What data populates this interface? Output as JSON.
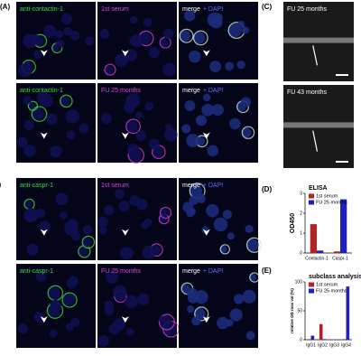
{
  "panel_labels": [
    "(A)",
    "(B)",
    "(C)",
    "(D)",
    "(E)"
  ],
  "images": [
    {
      "panel": 0,
      "labels": [
        {
          "text": "anti-contactin-1",
          "color": "#3fdc3f"
        }
      ]
    },
    {
      "panel": 0,
      "labels": [
        {
          "text": "1st serum",
          "color": "#e040e0"
        }
      ]
    },
    {
      "panel": 0,
      "labels": [
        {
          "text": "merge",
          "color": "#ffffff"
        },
        {
          "text": "+ DAPI",
          "color": "#5a6cff"
        }
      ]
    },
    {
      "panel": 0,
      "labels": [
        {
          "text": "anti-contactin-1",
          "color": "#3fdc3f"
        }
      ]
    },
    {
      "panel": 0,
      "labels": [
        {
          "text": "FU 25 months",
          "color": "#e040e0"
        }
      ]
    },
    {
      "panel": 0,
      "labels": [
        {
          "text": "merge",
          "color": "#ffffff"
        },
        {
          "text": "+ DAPI",
          "color": "#5a6cff"
        }
      ]
    },
    {
      "panel": 1,
      "labels": [
        {
          "text": "anti-caspr-1",
          "color": "#3fdc3f"
        }
      ]
    },
    {
      "panel": 1,
      "labels": [
        {
          "text": "1st serum",
          "color": "#e040e0"
        }
      ]
    },
    {
      "panel": 1,
      "labels": [
        {
          "text": "merge",
          "color": "#ffffff"
        },
        {
          "text": "+ DAPI",
          "color": "#5a6cff"
        }
      ]
    },
    {
      "panel": 1,
      "labels": [
        {
          "text": "anti-caspr-1",
          "color": "#3fdc3f"
        }
      ]
    },
    {
      "panel": 1,
      "labels": [
        {
          "text": "FU 25 months",
          "color": "#e040e0"
        }
      ]
    },
    {
      "panel": 1,
      "labels": [
        {
          "text": "merge",
          "color": "#ffffff"
        },
        {
          "text": "+ DAPI",
          "color": "#5a6cff"
        }
      ]
    },
    {
      "panel": 2,
      "labels": [
        {
          "text": "FU 25 months",
          "color": "#ffffff"
        }
      ]
    },
    {
      "panel": 2,
      "labels": [
        {
          "text": "FU 43 months",
          "color": "#ffffff"
        }
      ]
    }
  ],
  "chart_data": [
    {
      "type": "bar",
      "title": "ELISA",
      "y_label": "OD450",
      "categories": [
        "Contactin-1",
        "Caspr-1"
      ],
      "series": [
        {
          "name": "1st serum",
          "color": "#b22222",
          "values": [
            1.45,
            0.08
          ]
        },
        {
          "name": "FU 25 months",
          "color": "#1f1fbf",
          "values": [
            0.12,
            2.7
          ]
        }
      ],
      "ylim": [
        0,
        3
      ],
      "yticks": [
        0,
        1,
        2,
        3
      ]
    },
    {
      "type": "bar",
      "title": "subclass analysis",
      "y_label": "relative OD max val (%)",
      "categories": [
        "IgG1",
        "IgG2",
        "IgG3",
        "IgG4"
      ],
      "series": [
        {
          "name": "1st serum",
          "color": "#b22222",
          "values": [
            1,
            27,
            0.5,
            1
          ]
        },
        {
          "name": "FU 25 months",
          "color": "#1f1fbf",
          "values": [
            7,
            1,
            0.5,
            92
          ]
        }
      ],
      "ylim": [
        0,
        100
      ],
      "yticks": [
        0,
        50,
        100
      ]
    }
  ]
}
